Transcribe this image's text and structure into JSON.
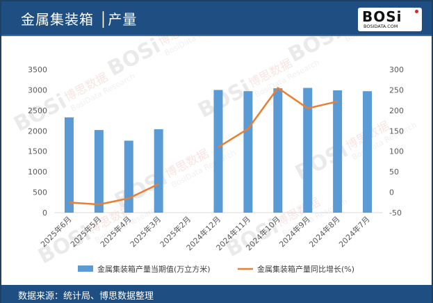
{
  "header": {
    "title": "金属集装箱 │产量",
    "logo_text": "BOSi",
    "logo_sub": "BOSIDATA.COM"
  },
  "watermark": {
    "brand": "BOSi",
    "cn": "博思数据",
    "en": "BosiData Research"
  },
  "footer": {
    "source": "数据来源：统计局、博思数据整理"
  },
  "colors": {
    "bar": "#5b9bd5",
    "line": "#ed7d31",
    "header_bg": "#1f4f82"
  },
  "chart_data": {
    "type": "bar",
    "categories": [
      "2025年6月",
      "2025年5月",
      "2025年4月",
      "2025年3月",
      "2025年2月",
      "2024年12月",
      "2024年11月",
      "2024年10月",
      "2024年9月",
      "2024年8月",
      "2024年7月"
    ],
    "series": [
      {
        "name": "金属集装箱产量当期值(万立方米)",
        "type": "bar",
        "axis": "left",
        "values": [
          2330,
          2020,
          1760,
          2040,
          null,
          3000,
          2970,
          3040,
          3050,
          2990,
          2970
        ]
      },
      {
        "name": "金属集装箱产量同比增长(%)",
        "type": "line",
        "axis": "right",
        "values": [
          -25,
          -30,
          -15,
          20,
          null,
          110,
          155,
          255,
          205,
          222,
          null
        ]
      }
    ],
    "ylim_left": [
      0,
      3500
    ],
    "yticks_left": [
      0,
      500,
      1000,
      1500,
      2000,
      2500,
      3000,
      3500
    ],
    "ylim_right": [
      -50,
      300
    ],
    "yticks_right": [
      -50,
      0,
      50,
      100,
      150,
      200,
      250,
      300
    ],
    "legend_position": "bottom",
    "grid": false
  }
}
